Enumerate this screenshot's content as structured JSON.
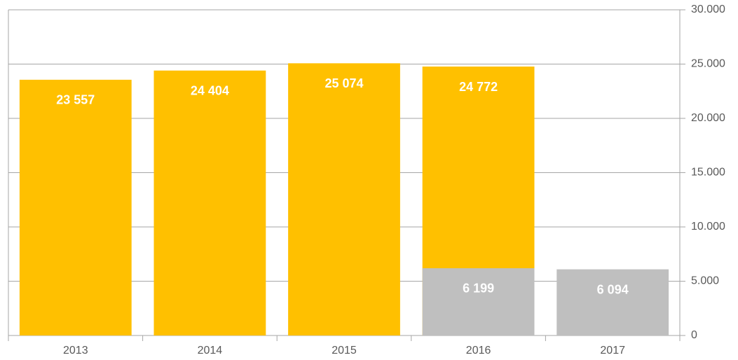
{
  "chart_data": {
    "type": "bar",
    "categories": [
      "2013",
      "2014",
      "2015",
      "2016",
      "2017"
    ],
    "series": [
      {
        "color": "#ffc000",
        "values": [
          23557,
          24404,
          25074,
          24772,
          null
        ],
        "value_labels": [
          "23 557",
          "24 404",
          "25 074",
          "24 772",
          null
        ]
      },
      {
        "color": "#bfbfbf",
        "values": [
          null,
          null,
          null,
          6199,
          6094
        ],
        "value_labels": [
          null,
          null,
          null,
          "6 199",
          "6 094"
        ]
      }
    ],
    "ylim": [
      0,
      30000
    ],
    "yticks": [
      0,
      {
        "value": 5000,
        "label": "5.000"
      },
      {
        "value": 10000,
        "label": "10.000"
      },
      {
        "value": 15000,
        "label": "15.000"
      },
      {
        "value": 20000,
        "label": "20.000"
      },
      {
        "value": 25000,
        "label": "25.000"
      },
      {
        "value": 30000,
        "label": "30.000"
      }
    ],
    "grid": true
  }
}
